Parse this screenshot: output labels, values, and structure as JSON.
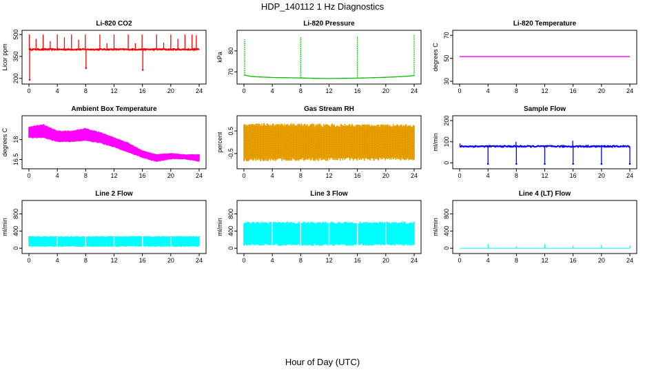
{
  "figure": {
    "title": "HDP_140112  1 Hz Diagnostics",
    "xlabel": "Hour of Day (UTC)"
  },
  "chart_data": [
    {
      "type": "line",
      "title": "Li-820 CO2",
      "ylabel": "Licor ppm",
      "color": "#ff0000",
      "xlim": [
        0,
        24
      ],
      "xticks": [
        0,
        4,
        8,
        12,
        16,
        20,
        24
      ],
      "ylim": [
        180,
        510
      ],
      "yticks": [
        200,
        350,
        500
      ],
      "baseline": 398,
      "noise": 4,
      "spikes": [
        {
          "x": 0.05,
          "y": 500
        },
        {
          "x": 0.1,
          "y": 190
        },
        {
          "x": 1.0,
          "y": 470
        },
        {
          "x": 2.0,
          "y": 500
        },
        {
          "x": 3.0,
          "y": 455
        },
        {
          "x": 4.0,
          "y": 500
        },
        {
          "x": 5.0,
          "y": 480
        },
        {
          "x": 6.0,
          "y": 500
        },
        {
          "x": 7.0,
          "y": 465
        },
        {
          "x": 7.95,
          "y": 500
        },
        {
          "x": 8.05,
          "y": 270
        },
        {
          "x": 10.0,
          "y": 500
        },
        {
          "x": 11.0,
          "y": 440
        },
        {
          "x": 12.0,
          "y": 500
        },
        {
          "x": 14.0,
          "y": 500
        },
        {
          "x": 15.0,
          "y": 440
        },
        {
          "x": 15.95,
          "y": 500
        },
        {
          "x": 16.05,
          "y": 258
        },
        {
          "x": 18.0,
          "y": 500
        },
        {
          "x": 19.0,
          "y": 445
        },
        {
          "x": 20.0,
          "y": 500
        },
        {
          "x": 21.0,
          "y": 470
        },
        {
          "x": 22.0,
          "y": 500
        },
        {
          "x": 23.0,
          "y": 500
        },
        {
          "x": 23.6,
          "y": 495
        }
      ]
    },
    {
      "type": "line",
      "title": "Li-820 Pressure",
      "ylabel": "kPa",
      "color": "#00c000",
      "xlim": [
        0,
        24
      ],
      "xticks": [
        0,
        4,
        8,
        12,
        16,
        20,
        24
      ],
      "ylim": [
        65.5,
        88.5
      ],
      "yticks": [
        70,
        80
      ],
      "x": [
        0,
        1,
        2,
        4,
        6,
        8,
        10,
        12,
        14,
        16,
        18,
        20,
        22,
        23,
        24
      ],
      "y": [
        68.5,
        67.8,
        67.6,
        67.3,
        67.2,
        67.1,
        66.9,
        66.8,
        66.9,
        67.0,
        67.2,
        67.4,
        67.7,
        67.9,
        68.2
      ],
      "spikes": [
        {
          "x": 0.1,
          "y": 85.5
        },
        {
          "x": 8.0,
          "y": 86.5
        },
        {
          "x": 16.0,
          "y": 87.0
        },
        {
          "x": 24.0,
          "y": 88.0
        }
      ]
    },
    {
      "type": "line",
      "title": "Li-820 Temperature",
      "ylabel": "degrees C",
      "color": "#ff00ff",
      "xlim": [
        0,
        24
      ],
      "xticks": [
        0,
        4,
        8,
        12,
        16,
        20,
        24
      ],
      "ylim": [
        30,
        72
      ],
      "yticks": [
        30,
        50,
        70
      ],
      "x": [
        0,
        24
      ],
      "y": [
        51.5,
        51.5
      ]
    },
    {
      "type": "area",
      "title": "Ambient Box Temperature",
      "ylabel": "degrees C",
      "color": "#ff00ff",
      "xlim": [
        0,
        24
      ],
      "xticks": [
        0,
        4,
        8,
        12,
        16,
        20,
        24
      ],
      "ylim": [
        16.0,
        19.6
      ],
      "yticks": [
        16.5,
        18.0
      ],
      "x": [
        0,
        2,
        4,
        6,
        8,
        10,
        12,
        14,
        16,
        18,
        20,
        22,
        24
      ],
      "lower": [
        18.1,
        18.1,
        17.8,
        17.8,
        17.9,
        17.7,
        17.4,
        17.0,
        16.6,
        16.3,
        16.5,
        16.5,
        16.3
      ],
      "upper": [
        19.0,
        19.2,
        18.7,
        18.7,
        18.9,
        18.6,
        18.2,
        17.8,
        17.2,
        16.9,
        17.0,
        16.9,
        16.9
      ]
    },
    {
      "type": "area",
      "title": "Gas Stream RH",
      "ylabel": "percent",
      "color": "#e8a000",
      "xlim": [
        0,
        24
      ],
      "xticks": [
        0,
        4,
        8,
        12,
        16,
        20,
        24
      ],
      "ylim": [
        -1.05,
        1.05
      ],
      "yticks": [
        -0.5,
        0.5
      ],
      "x": [
        0,
        24
      ],
      "lower": [
        -0.85,
        -0.8
      ],
      "upper": [
        0.85,
        0.8
      ]
    },
    {
      "type": "line",
      "title": "Sample Flow",
      "ylabel": "ml/min",
      "color": "#0000ff",
      "xlim": [
        0,
        24
      ],
      "xticks": [
        0,
        4,
        8,
        12,
        16,
        20,
        24
      ],
      "ylim": [
        -15,
        210
      ],
      "yticks": [
        0,
        100,
        200
      ],
      "baseline": 78,
      "noise": 3,
      "spikes": [
        {
          "x": 0.05,
          "y": 92
        },
        {
          "x": 4.0,
          "y": -5
        },
        {
          "x": 8.0,
          "y": -5
        },
        {
          "x": 7.95,
          "y": 100
        },
        {
          "x": 12.0,
          "y": -5
        },
        {
          "x": 16.0,
          "y": -5
        },
        {
          "x": 15.95,
          "y": 105
        },
        {
          "x": 20.0,
          "y": -5
        },
        {
          "x": 24.0,
          "y": -5
        }
      ]
    },
    {
      "type": "area",
      "title": "Line 2 Flow",
      "ylabel": "ml/min",
      "color": "#00ffff",
      "xlim": [
        0,
        24
      ],
      "xticks": [
        0,
        4,
        8,
        12,
        16,
        20,
        24
      ],
      "ylim": [
        -60,
        1050
      ],
      "yticks": [
        0,
        400,
        800
      ],
      "x": [
        0,
        24
      ],
      "lower": [
        30,
        30
      ],
      "upper": [
        285,
        285
      ],
      "gaps": [
        4,
        8,
        12,
        16,
        20
      ]
    },
    {
      "type": "area",
      "title": "Line 3 Flow",
      "ylabel": "ml/min",
      "color": "#00ffff",
      "xlim": [
        0,
        24
      ],
      "xticks": [
        0,
        4,
        8,
        12,
        16,
        20,
        24
      ],
      "ylim": [
        -60,
        1050
      ],
      "yticks": [
        0,
        400,
        800
      ],
      "x": [
        0,
        24
      ],
      "lower": [
        55,
        55
      ],
      "upper": [
        620,
        620
      ],
      "gaps": [
        4,
        8,
        12,
        16,
        20
      ]
    },
    {
      "type": "line",
      "title": "Line 4 (LT) Flow",
      "ylabel": "ml/min",
      "color": "#00ffff",
      "xlim": [
        0,
        24
      ],
      "xticks": [
        0,
        4,
        8,
        12,
        16,
        20,
        24
      ],
      "ylim": [
        -60,
        1050
      ],
      "yticks": [
        0,
        400,
        800
      ],
      "baseline": 0,
      "noise": 0,
      "spikes": [
        {
          "x": 4.0,
          "y": 95
        },
        {
          "x": 8.0,
          "y": 50
        },
        {
          "x": 12.0,
          "y": 85
        },
        {
          "x": 16.0,
          "y": 60
        },
        {
          "x": 20.0,
          "y": 80
        },
        {
          "x": 24.0,
          "y": 70
        }
      ]
    }
  ]
}
